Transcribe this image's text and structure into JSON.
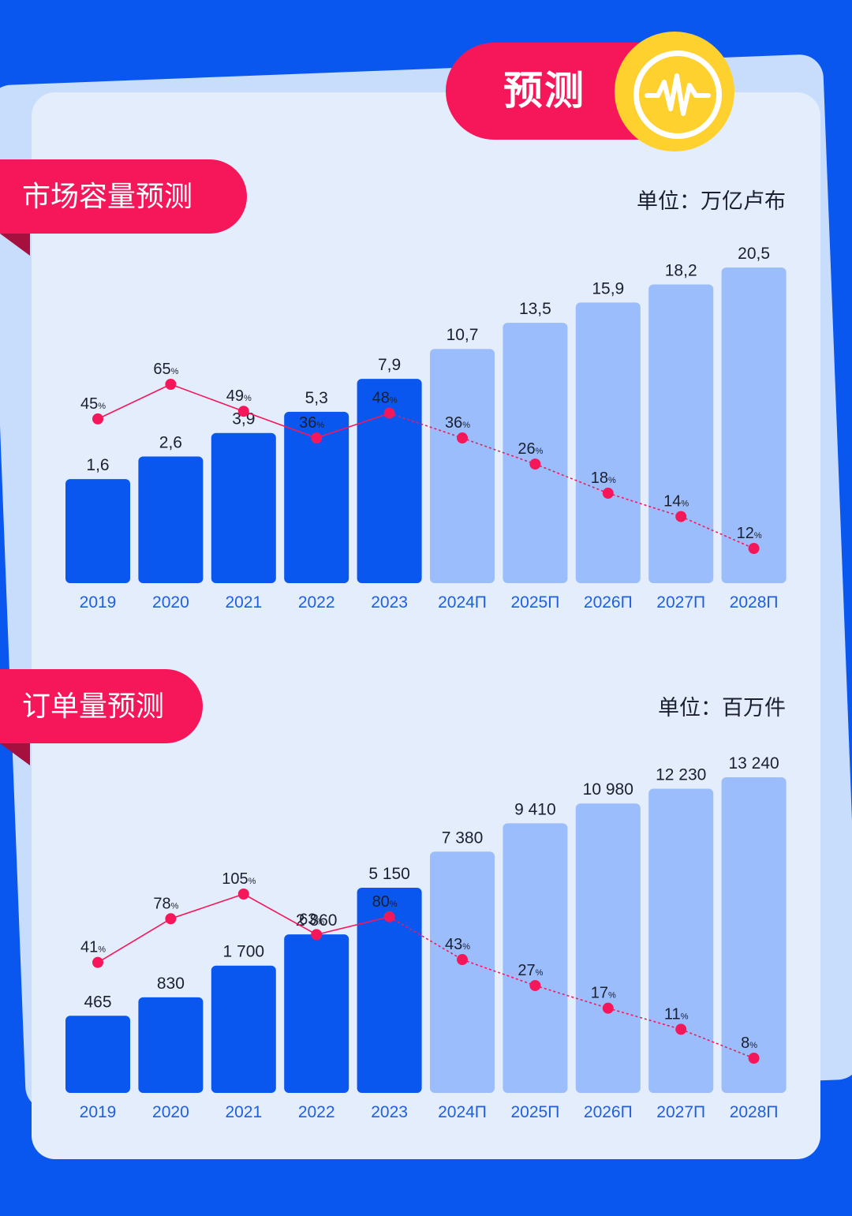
{
  "header": {
    "title": "预测"
  },
  "colors": {
    "background": "#0a57f0",
    "card": "#e3edfc",
    "accent_red": "#f5175a",
    "badge_yellow": "#ffd12e",
    "bar_actual": "#0a57f0",
    "bar_forecast": "#9bbdfb",
    "year_label": "#1f5fe0"
  },
  "badge_icon": "pulse-wave-icon",
  "chart_data": [
    {
      "type": "bar",
      "title": "市场容量预测",
      "unit": "单位：万亿卢布",
      "categories": [
        "2019",
        "2020",
        "2021",
        "2022",
        "2023",
        "2024П",
        "2025П",
        "2026П",
        "2027П",
        "2028П"
      ],
      "forecast_from_index": 5,
      "values": [
        1.6,
        2.6,
        3.9,
        5.3,
        7.9,
        10.7,
        13.5,
        15.9,
        18.2,
        20.5
      ],
      "value_labels": [
        "1,6",
        "2,6",
        "3,9",
        "5,3",
        "7,9",
        "10,7",
        "13,5",
        "15,9",
        "18,2",
        "20,5"
      ],
      "ylim": [
        0,
        20.5
      ],
      "growth_line": {
        "values": [
          45,
          65,
          49,
          36,
          48,
          36,
          26,
          18,
          14,
          12
        ],
        "labels": [
          "45",
          "65",
          "49",
          "36",
          "48",
          "36",
          "26",
          "18",
          "14",
          "12"
        ],
        "suffix": "%",
        "ylim": [
          12,
          65
        ]
      }
    },
    {
      "type": "bar",
      "title": "订单量预测",
      "unit": "单位：百万件",
      "categories": [
        "2019",
        "2020",
        "2021",
        "2022",
        "2023",
        "2024П",
        "2025П",
        "2026П",
        "2027П",
        "2028П"
      ],
      "forecast_from_index": 5,
      "values": [
        465,
        830,
        1700,
        2860,
        5150,
        7380,
        9410,
        10980,
        12230,
        13240
      ],
      "value_labels": [
        "465",
        "830",
        "1 700",
        "2 860",
        "5 150",
        "7 380",
        "9 410",
        "10 980",
        "12 230",
        "13 240"
      ],
      "ylim": [
        0,
        13240
      ],
      "growth_line": {
        "values": [
          41,
          78,
          105,
          63,
          80,
          43,
          27,
          17,
          11,
          8
        ],
        "labels": [
          "41",
          "78",
          "105",
          "63",
          "80",
          "43",
          "27",
          "17",
          "11",
          "8"
        ],
        "suffix": "%",
        "ylim": [
          8,
          105
        ]
      }
    }
  ]
}
